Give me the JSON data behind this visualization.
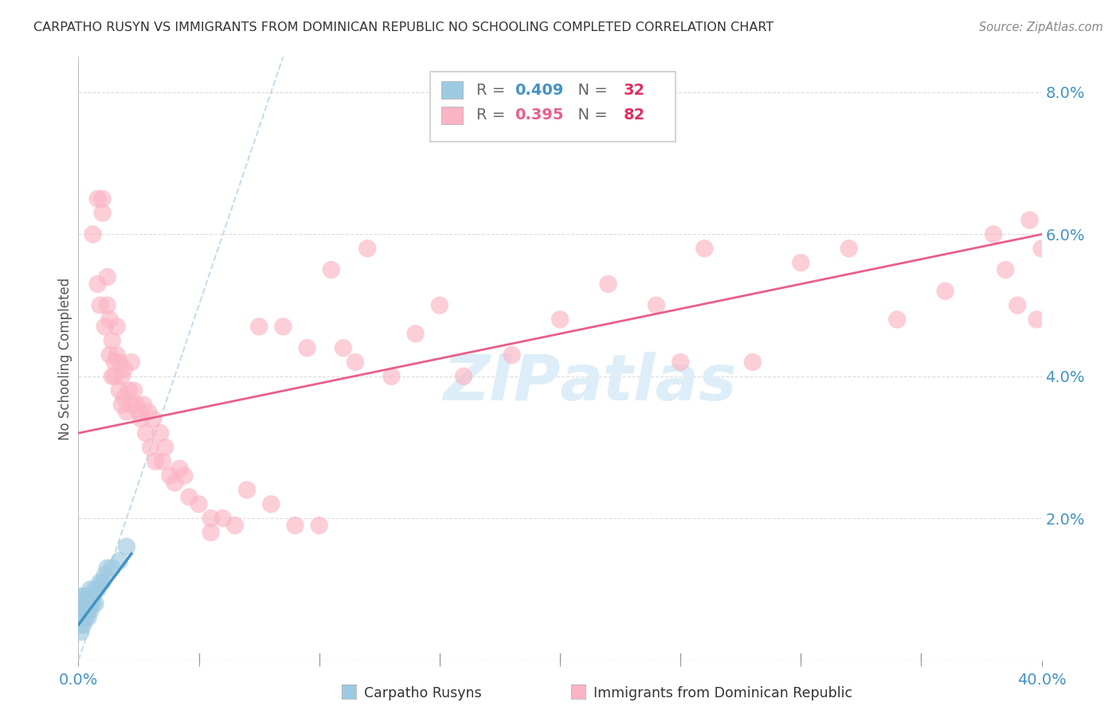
{
  "title": "CARPATHO RUSYN VS IMMIGRANTS FROM DOMINICAN REPUBLIC NO SCHOOLING COMPLETED CORRELATION CHART",
  "source": "Source: ZipAtlas.com",
  "ylabel": "No Schooling Completed",
  "xlim": [
    0.0,
    0.4
  ],
  "ylim": [
    0.0,
    0.085
  ],
  "xtick_vals": [
    0.0,
    0.05,
    0.1,
    0.15,
    0.2,
    0.25,
    0.3,
    0.35,
    0.4
  ],
  "xtick_labels": [
    "0.0%",
    "",
    "",
    "",
    "",
    "",
    "",
    "",
    "40.0%"
  ],
  "ytick_vals": [
    0.0,
    0.02,
    0.04,
    0.06,
    0.08
  ],
  "ytick_labels": [
    "",
    "2.0%",
    "4.0%",
    "6.0%",
    "8.0%"
  ],
  "blue_line_color": "#4393c3",
  "pink_line_color": "#e8608a",
  "scatter_blue_color": "#9ecae1",
  "scatter_pink_color": "#fbb4c4",
  "background_color": "#ffffff",
  "grid_color": "#cccccc",
  "title_color": "#333333",
  "axis_color": "#4393c3",
  "watermark_color": "#ddeef8",
  "legend_R1": "0.409",
  "legend_N1": "32",
  "legend_R2": "0.395",
  "legend_N2": "82",
  "blue_scatter_x": [
    0.001,
    0.001,
    0.001,
    0.001,
    0.001,
    0.001,
    0.002,
    0.002,
    0.002,
    0.002,
    0.002,
    0.003,
    0.003,
    0.003,
    0.004,
    0.004,
    0.004,
    0.005,
    0.005,
    0.005,
    0.006,
    0.006,
    0.007,
    0.007,
    0.008,
    0.009,
    0.01,
    0.011,
    0.012,
    0.014,
    0.017,
    0.02
  ],
  "blue_scatter_y": [
    0.004,
    0.005,
    0.006,
    0.007,
    0.008,
    0.009,
    0.005,
    0.006,
    0.007,
    0.008,
    0.009,
    0.006,
    0.007,
    0.008,
    0.006,
    0.007,
    0.009,
    0.007,
    0.008,
    0.01,
    0.008,
    0.009,
    0.008,
    0.01,
    0.01,
    0.011,
    0.011,
    0.012,
    0.013,
    0.013,
    0.014,
    0.016
  ],
  "pink_scatter_x": [
    0.006,
    0.008,
    0.008,
    0.009,
    0.01,
    0.01,
    0.011,
    0.012,
    0.012,
    0.013,
    0.013,
    0.014,
    0.014,
    0.015,
    0.015,
    0.016,
    0.016,
    0.017,
    0.017,
    0.018,
    0.018,
    0.019,
    0.019,
    0.02,
    0.021,
    0.022,
    0.022,
    0.023,
    0.024,
    0.025,
    0.026,
    0.027,
    0.028,
    0.029,
    0.03,
    0.031,
    0.032,
    0.034,
    0.035,
    0.036,
    0.038,
    0.04,
    0.042,
    0.044,
    0.046,
    0.05,
    0.055,
    0.06,
    0.065,
    0.07,
    0.08,
    0.09,
    0.1,
    0.11,
    0.12,
    0.13,
    0.14,
    0.15,
    0.16,
    0.18,
    0.2,
    0.22,
    0.24,
    0.26,
    0.28,
    0.3,
    0.32,
    0.34,
    0.36,
    0.38,
    0.385,
    0.39,
    0.395,
    0.398,
    0.4,
    0.095,
    0.105,
    0.115,
    0.055,
    0.075,
    0.085,
    0.25
  ],
  "pink_scatter_y": [
    0.06,
    0.065,
    0.053,
    0.05,
    0.063,
    0.065,
    0.047,
    0.05,
    0.054,
    0.043,
    0.048,
    0.04,
    0.045,
    0.04,
    0.042,
    0.043,
    0.047,
    0.038,
    0.042,
    0.036,
    0.04,
    0.037,
    0.041,
    0.035,
    0.038,
    0.036,
    0.042,
    0.038,
    0.036,
    0.035,
    0.034,
    0.036,
    0.032,
    0.035,
    0.03,
    0.034,
    0.028,
    0.032,
    0.028,
    0.03,
    0.026,
    0.025,
    0.027,
    0.026,
    0.023,
    0.022,
    0.02,
    0.02,
    0.019,
    0.024,
    0.022,
    0.019,
    0.019,
    0.044,
    0.058,
    0.04,
    0.046,
    0.05,
    0.04,
    0.043,
    0.048,
    0.053,
    0.05,
    0.058,
    0.042,
    0.056,
    0.058,
    0.048,
    0.052,
    0.06,
    0.055,
    0.05,
    0.062,
    0.048,
    0.058,
    0.044,
    0.055,
    0.042,
    0.018,
    0.047,
    0.047,
    0.042
  ],
  "pink_line_x": [
    0.0,
    0.4
  ],
  "pink_line_y": [
    0.032,
    0.06
  ],
  "blue_line_x": [
    0.0,
    0.022
  ],
  "blue_line_y": [
    0.005,
    0.015
  ],
  "dashed_line_x": [
    0.0,
    0.085
  ],
  "dashed_line_y": [
    0.0,
    0.085
  ]
}
